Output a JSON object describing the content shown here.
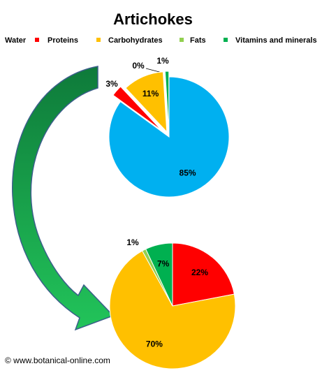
{
  "chart_data": [
    {
      "type": "pie",
      "title": "Artichokes",
      "categories": [
        "Water",
        "Proteins",
        "Carbohydrates",
        "Fats",
        "Vitamins and minerals"
      ],
      "values": [
        85,
        3,
        11,
        0,
        1
      ],
      "value_labels": [
        "85%",
        "3%",
        "11%",
        "0%",
        "1%"
      ],
      "colors": [
        "#00b0f0",
        "#ff0000",
        "#ffc000",
        "#92d050",
        "#00b050"
      ],
      "legend": "top"
    },
    {
      "type": "pie",
      "categories": [
        "Proteins",
        "Carbohydrates",
        "Fats",
        "Vitamins and minerals"
      ],
      "values": [
        22,
        70,
        1,
        7
      ],
      "value_labels": [
        "22%",
        "70%",
        "1%",
        "7%"
      ],
      "colors": [
        "#ff0000",
        "#ffc000",
        "#92d050",
        "#00b050"
      ]
    }
  ],
  "watermark": "© www.botanical-online.com"
}
